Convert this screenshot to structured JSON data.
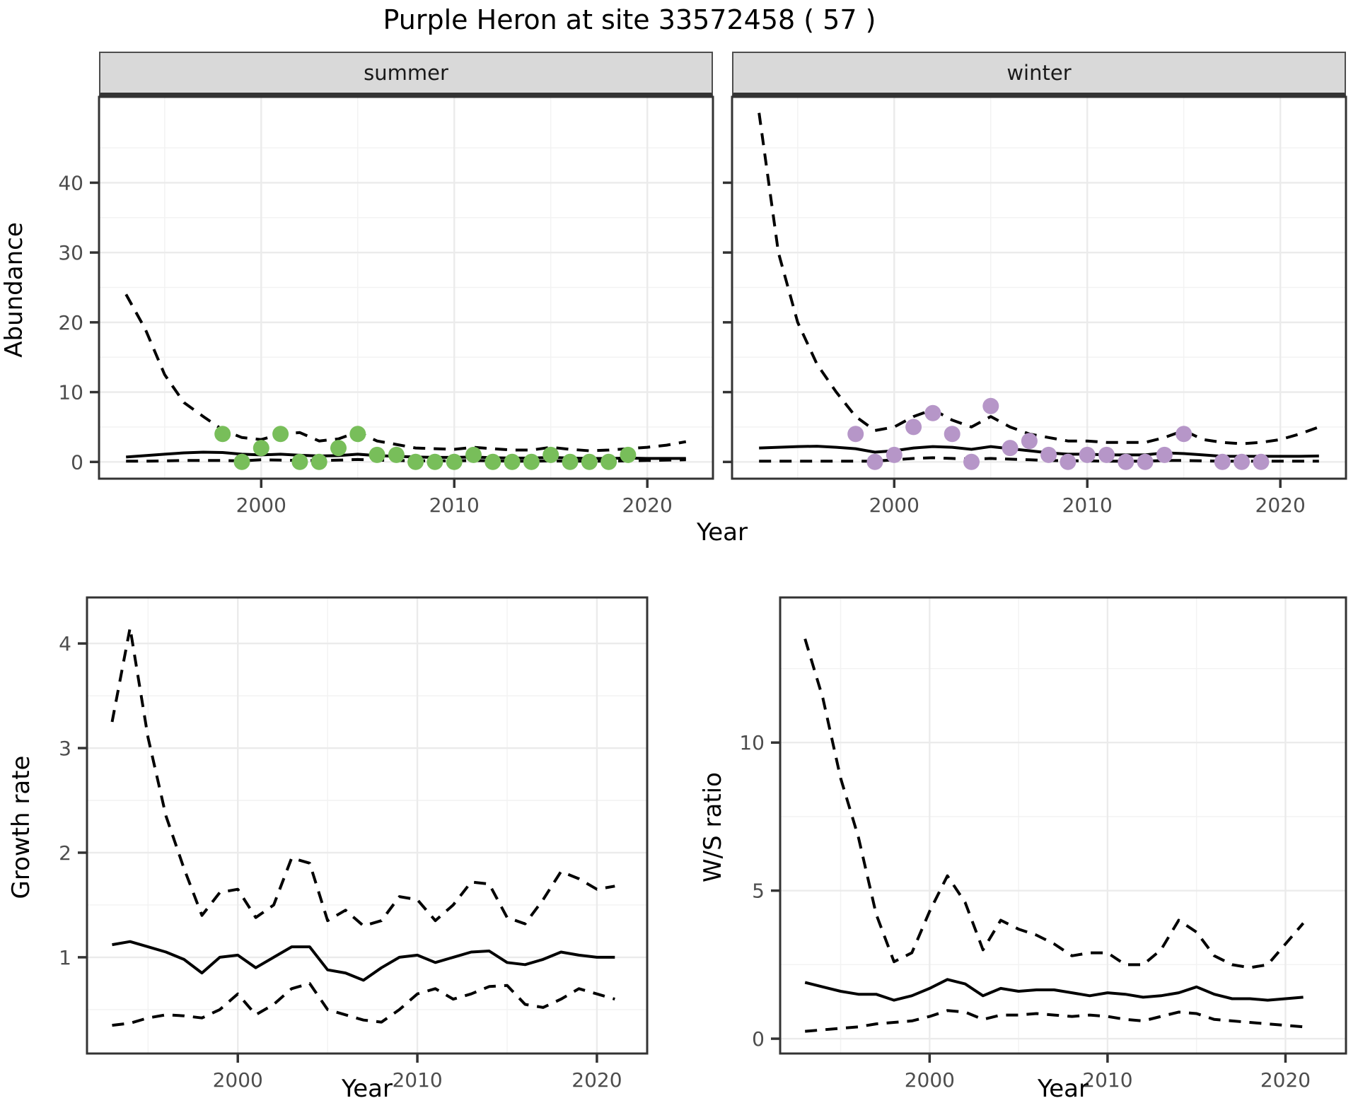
{
  "title": "Purple Heron at site 33572458 ( 57 )",
  "axes": {
    "x": "Year",
    "abundance": "Abundance",
    "growth": "Growth rate",
    "ws": "W/S ratio"
  },
  "colors": {
    "summer_points": "#78be5a",
    "winter_points": "#b696c8",
    "line": "#000000",
    "grid_major": "#ebebeb",
    "grid_minor": "#f2f2f2",
    "panel_border": "#333333",
    "tick_text": "#4d4d4d",
    "strip_bg": "#d9d9d9"
  },
  "chart_data": [
    {
      "id": "summer",
      "type": "line",
      "facet_label": "summer",
      "xlabel": "Year",
      "ylabel": "Abundance",
      "xlim": [
        1991.6,
        2023.4
      ],
      "ylim": [
        -2.4,
        52.3
      ],
      "x_ticks": [
        2000,
        2010,
        2020
      ],
      "y_ticks": [
        0,
        10,
        20,
        30,
        40
      ],
      "grid": true,
      "x": [
        1993,
        1994,
        1995,
        1996,
        1997,
        1998,
        1999,
        2000,
        2001,
        2002,
        2003,
        2004,
        2005,
        2006,
        2007,
        2008,
        2009,
        2010,
        2011,
        2012,
        2013,
        2014,
        2015,
        2016,
        2017,
        2018,
        2019,
        2020,
        2021,
        2022
      ],
      "series": [
        {
          "name": "mean",
          "style": "solid",
          "values": [
            0.7,
            0.9,
            1.1,
            1.3,
            1.4,
            1.35,
            1.1,
            1.0,
            1.1,
            0.95,
            0.85,
            0.9,
            1.1,
            0.9,
            0.8,
            0.7,
            0.65,
            0.65,
            0.7,
            0.6,
            0.55,
            0.55,
            0.65,
            0.55,
            0.5,
            0.5,
            0.55,
            0.5,
            0.5,
            0.5
          ]
        },
        {
          "name": "upper_95ci",
          "style": "dashed",
          "values": [
            24,
            19,
            12.5,
            8.5,
            6.5,
            4.6,
            3.5,
            3.2,
            4.0,
            4.2,
            3.0,
            3.3,
            4.3,
            3.0,
            2.5,
            2.0,
            1.9,
            1.8,
            2.1,
            1.9,
            1.7,
            1.7,
            2.1,
            1.8,
            1.6,
            1.7,
            1.9,
            2.1,
            2.4,
            2.9
          ]
        },
        {
          "name": "lower_95ci",
          "style": "dashed",
          "values": [
            0.1,
            0.1,
            0.15,
            0.2,
            0.2,
            0.2,
            0.15,
            0.3,
            0.25,
            0.2,
            0.2,
            0.25,
            0.35,
            0.25,
            0.2,
            0.15,
            0.15,
            0.15,
            0.2,
            0.15,
            0.1,
            0.1,
            0.15,
            0.1,
            0.1,
            0.1,
            0.15,
            0.2,
            0.25,
            0.3
          ]
        }
      ],
      "observed_points": {
        "color_key": "summer_points",
        "years": [
          1998,
          1999,
          2000,
          2001,
          2002,
          2003,
          2004,
          2005,
          2006,
          2007,
          2008,
          2009,
          2010,
          2011,
          2012,
          2013,
          2014,
          2015,
          2016,
          2017,
          2018,
          2019
        ],
        "values": [
          4,
          0,
          2,
          4,
          0,
          0,
          2,
          4,
          1,
          1,
          0,
          0,
          0,
          1,
          0,
          0,
          0,
          1,
          0,
          0,
          0,
          1
        ]
      }
    },
    {
      "id": "winter",
      "type": "line",
      "facet_label": "winter",
      "xlabel": "Year",
      "ylabel": "Abundance",
      "xlim": [
        1991.6,
        2023.4
      ],
      "ylim": [
        -2.4,
        52.3
      ],
      "x_ticks": [
        2000,
        2010,
        2020
      ],
      "y_ticks": [
        0,
        10,
        20,
        30,
        40
      ],
      "grid": true,
      "x": [
        1993,
        1994,
        1995,
        1996,
        1997,
        1998,
        1999,
        2000,
        2001,
        2002,
        2003,
        2004,
        2005,
        2006,
        2007,
        2008,
        2009,
        2010,
        2011,
        2012,
        2013,
        2014,
        2015,
        2016,
        2017,
        2018,
        2019,
        2020,
        2021,
        2022
      ],
      "series": [
        {
          "name": "mean",
          "style": "solid",
          "values": [
            2.0,
            2.1,
            2.2,
            2.25,
            2.1,
            1.9,
            1.4,
            1.6,
            2.0,
            2.2,
            2.1,
            1.8,
            2.2,
            1.9,
            1.6,
            1.3,
            1.1,
            1.1,
            1.0,
            1.0,
            1.0,
            1.3,
            1.2,
            1.0,
            0.8,
            0.8,
            0.8,
            0.8,
            0.8,
            0.85
          ]
        },
        {
          "name": "upper_95ci",
          "style": "dashed",
          "values": [
            50,
            30,
            20,
            14,
            10,
            6.5,
            4.5,
            5.0,
            6.5,
            7.5,
            6.0,
            5.0,
            6.5,
            5.0,
            4.0,
            3.5,
            3.0,
            3.0,
            2.8,
            2.8,
            2.8,
            3.5,
            4.5,
            3.2,
            2.8,
            2.6,
            2.8,
            3.2,
            4.0,
            5.0
          ]
        },
        {
          "name": "lower_95ci",
          "style": "dashed",
          "values": [
            0.1,
            0.1,
            0.1,
            0.1,
            0.1,
            0.1,
            0.1,
            0.3,
            0.5,
            0.6,
            0.5,
            0.4,
            0.5,
            0.4,
            0.3,
            0.2,
            0.15,
            0.15,
            0.1,
            0.1,
            0.1,
            0.2,
            0.2,
            0.15,
            0.1,
            0.1,
            0.1,
            0.1,
            0.1,
            0.1
          ]
        }
      ],
      "observed_points": {
        "color_key": "winter_points",
        "years": [
          1998,
          1999,
          2000,
          2001,
          2002,
          2003,
          2004,
          2005,
          2006,
          2007,
          2008,
          2009,
          2010,
          2011,
          2012,
          2013,
          2014,
          2015,
          2017,
          2018,
          2019
        ],
        "values": [
          4,
          0,
          1,
          5,
          7,
          4,
          0,
          8,
          2,
          3,
          1,
          0,
          1,
          1,
          0,
          0,
          1,
          4,
          0,
          0,
          0
        ]
      }
    },
    {
      "id": "growth",
      "type": "line",
      "facet_label": "",
      "xlabel": "Year",
      "ylabel": "Growth rate",
      "xlim": [
        1991.6,
        2022.8
      ],
      "ylim": [
        0.08,
        4.44
      ],
      "x_ticks": [
        2000,
        2010,
        2020
      ],
      "y_ticks": [
        1,
        2,
        3,
        4
      ],
      "grid": true,
      "x": [
        1993,
        1994,
        1995,
        1996,
        1997,
        1998,
        1999,
        2000,
        2001,
        2002,
        2003,
        2004,
        2005,
        2006,
        2007,
        2008,
        2009,
        2010,
        2011,
        2012,
        2013,
        2014,
        2015,
        2016,
        2017,
        2018,
        2019,
        2020,
        2021
      ],
      "series": [
        {
          "name": "mean",
          "style": "solid",
          "values": [
            1.12,
            1.15,
            1.1,
            1.05,
            0.98,
            0.85,
            1.0,
            1.02,
            0.9,
            1.0,
            1.1,
            1.1,
            0.88,
            0.85,
            0.78,
            0.9,
            1.0,
            1.02,
            0.95,
            1.0,
            1.05,
            1.06,
            0.95,
            0.93,
            0.98,
            1.05,
            1.02,
            1.0,
            1.0
          ]
        },
        {
          "name": "upper_95ci",
          "style": "dashed",
          "values": [
            3.25,
            4.15,
            3.1,
            2.35,
            1.85,
            1.4,
            1.62,
            1.65,
            1.38,
            1.5,
            1.95,
            1.9,
            1.35,
            1.45,
            1.3,
            1.35,
            1.58,
            1.55,
            1.35,
            1.5,
            1.72,
            1.7,
            1.38,
            1.32,
            1.55,
            1.82,
            1.75,
            1.65,
            1.68
          ]
        },
        {
          "name": "lower_95ci",
          "style": "dashed",
          "values": [
            0.35,
            0.37,
            0.42,
            0.45,
            0.44,
            0.42,
            0.5,
            0.65,
            0.45,
            0.55,
            0.7,
            0.75,
            0.5,
            0.45,
            0.4,
            0.38,
            0.5,
            0.65,
            0.7,
            0.6,
            0.65,
            0.72,
            0.73,
            0.55,
            0.52,
            0.6,
            0.7,
            0.65,
            0.6
          ]
        }
      ],
      "observed_points": {
        "color_key": "",
        "years": [],
        "values": []
      }
    },
    {
      "id": "ws",
      "type": "line",
      "facet_label": "",
      "xlabel": "Year",
      "ylabel": "W/S ratio",
      "xlim": [
        1991.6,
        2023.4
      ],
      "ylim": [
        -0.5,
        14.9
      ],
      "x_ticks": [
        2000,
        2010,
        2020
      ],
      "y_ticks": [
        0,
        5,
        10
      ],
      "grid": true,
      "x": [
        1993,
        1994,
        1995,
        1996,
        1997,
        1998,
        1999,
        2000,
        2001,
        2002,
        2003,
        2004,
        2005,
        2006,
        2007,
        2008,
        2009,
        2010,
        2011,
        2012,
        2013,
        2014,
        2015,
        2016,
        2017,
        2018,
        2019,
        2020,
        2021
      ],
      "series": [
        {
          "name": "mean",
          "style": "solid",
          "values": [
            1.9,
            1.75,
            1.6,
            1.5,
            1.5,
            1.3,
            1.45,
            1.7,
            2.0,
            1.85,
            1.45,
            1.7,
            1.6,
            1.65,
            1.65,
            1.55,
            1.45,
            1.55,
            1.5,
            1.4,
            1.45,
            1.55,
            1.75,
            1.5,
            1.35,
            1.35,
            1.3,
            1.35,
            1.4
          ]
        },
        {
          "name": "upper_95ci",
          "style": "dashed",
          "values": [
            13.5,
            11.5,
            8.8,
            6.8,
            4.2,
            2.6,
            2.9,
            4.3,
            5.5,
            4.6,
            3.0,
            4.0,
            3.7,
            3.5,
            3.2,
            2.8,
            2.9,
            2.9,
            2.5,
            2.5,
            3.0,
            4.0,
            3.6,
            2.8,
            2.5,
            2.4,
            2.5,
            3.2,
            3.9
          ]
        },
        {
          "name": "lower_95ci",
          "style": "dashed",
          "values": [
            0.25,
            0.3,
            0.35,
            0.4,
            0.5,
            0.55,
            0.6,
            0.75,
            0.95,
            0.9,
            0.65,
            0.8,
            0.8,
            0.85,
            0.8,
            0.75,
            0.8,
            0.75,
            0.65,
            0.6,
            0.75,
            0.9,
            0.85,
            0.65,
            0.6,
            0.55,
            0.5,
            0.45,
            0.4
          ]
        }
      ],
      "observed_points": {
        "color_key": "",
        "years": [],
        "values": []
      }
    }
  ]
}
